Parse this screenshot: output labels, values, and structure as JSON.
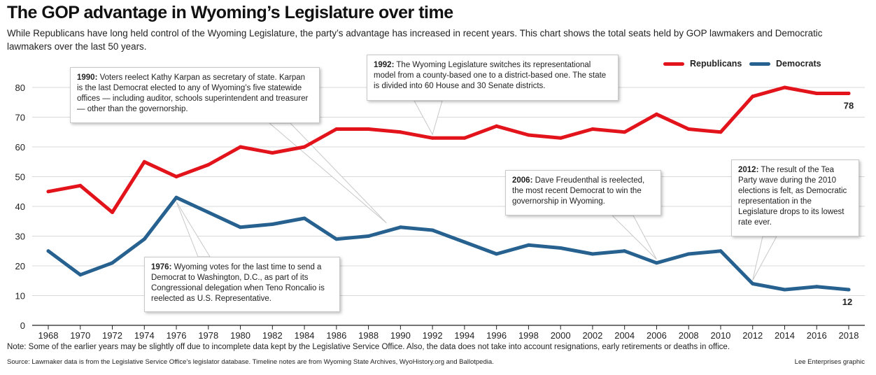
{
  "title": "The GOP advantage in Wyoming’s Legislature over time",
  "subtitle": "While Republicans have long held control of the Wyoming Legislature, the party’s advantage has increased in recent years. This chart shows the total seats held by GOP lawmakers and Democratic lawmakers over the last 50 years.",
  "legend": {
    "republicans": "Republicans",
    "democrats": "Democrats"
  },
  "colors": {
    "republicans": "#e3131b",
    "democrats": "#27618f"
  },
  "chart_data": {
    "type": "line",
    "x": [
      1968,
      1970,
      1972,
      1974,
      1976,
      1978,
      1980,
      1982,
      1984,
      1986,
      1988,
      1990,
      1992,
      1994,
      1996,
      1998,
      2000,
      2002,
      2004,
      2006,
      2008,
      2010,
      2012,
      2014,
      2016,
      2018
    ],
    "x_tick_labels": [
      "1968",
      "1970",
      "1972",
      "1974",
      "1976",
      "1978",
      "1980",
      "1982",
      "1984",
      "1986",
      "1988",
      "1990",
      "1992",
      "1994",
      "1996",
      "1998",
      "2000",
      "2002",
      "2004",
      "2006",
      "2008",
      "2010",
      "2012",
      "2014",
      "2016",
      "2018"
    ],
    "y_ticks": [
      0,
      10,
      20,
      30,
      40,
      50,
      60,
      70,
      80
    ],
    "ylim": [
      0,
      80
    ],
    "grid": true,
    "legend_position": "top-right",
    "series": [
      {
        "name": "Republicans",
        "values": [
          45,
          47,
          38,
          55,
          50,
          54,
          60,
          58,
          60,
          66,
          66,
          65,
          63,
          63,
          67,
          64,
          63,
          66,
          65,
          71,
          66,
          65,
          77,
          80,
          78,
          78
        ]
      },
      {
        "name": "Democrats",
        "values": [
          25,
          17,
          21,
          29,
          43,
          38,
          33,
          34,
          36,
          29,
          30,
          33,
          32,
          28,
          24,
          27,
          26,
          24,
          25,
          21,
          24,
          25,
          14,
          12,
          13,
          12
        ]
      }
    ],
    "end_labels": {
      "republicans": "78",
      "democrats": "12"
    },
    "annotations": [
      {
        "year": "1990:",
        "text": " Voters reelect Kathy Karpan as secretary of state. Karpan is the last Democrat elected to any of Wyoming’s five statewide offices — including auditor, schools superintendent and treasurer — other than the governorship."
      },
      {
        "year": "1992:",
        "text": " The Wyoming Legislature switches its representational model from a county-based one to a district-based one. The state is divided into 60 House and 30 Senate districts."
      },
      {
        "year": "1976:",
        "text": " Wyoming votes for the last time to send a Democrat to Washington, D.C., as part of its Congressional delegation when Teno Roncalio is reelected as U.S. Representative."
      },
      {
        "year": "2006:",
        "text": " Dave Freudenthal is reelected, the most recent Democrat to win the governorship in Wyoming."
      },
      {
        "year": "2012:",
        "text": " The result of the Tea Party wave during the 2010 elections is felt, as Democratic representation in the Legislature drops to its lowest rate ever."
      }
    ]
  },
  "note": "Note: Some of the earlier years may be slightly off due to incomplete data kept by the Legislative Service Office. Also, the data does not take into account resignations, early retirements or deaths in office.",
  "source": "Source: Lawmaker data is from the Legislative Service Office’s legislator database. Timeline notes are from Wyoming State Archives, WyoHistory.org and Ballotpedia.",
  "credit": "Lee Enterprises graphic"
}
